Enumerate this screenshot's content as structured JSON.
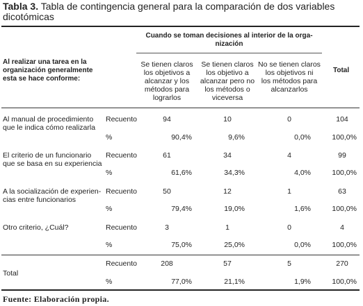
{
  "caption": {
    "label": "Tabla 3.",
    "text": "Tabla de contingencia general para la comparación de dos variables dicotómicas"
  },
  "header": {
    "row_var_line1": "Al realizar una tarea en la",
    "row_var_line2": "organización generalmente",
    "row_var_line3": "esta se hace conforme:",
    "group_line1": "Cuando se toman decisiones al interior de la orga-",
    "group_line2": "nización",
    "col1": [
      "Se tienen claros",
      "los objetivos a",
      "alcanzar y los",
      "métodos para",
      "lograrlos"
    ],
    "col2": [
      "Se tienen claros",
      "los objetivo a",
      "alcanzar pero no",
      "los métodos o",
      "viceversa"
    ],
    "col3": [
      "No se tienen claros",
      "los objetivos ni",
      "los métodos para",
      "alcanzarlos"
    ],
    "total": "Total"
  },
  "rows": [
    {
      "label1": "Al manual de procedimiento",
      "label2": "que le indica cómo realizarla",
      "count_label": "Recuento",
      "pct_label": "%",
      "counts": [
        "94",
        "10",
        "0",
        "104"
      ],
      "pcts": [
        "90,4%",
        "9,6%",
        "0,0%",
        "100,0%"
      ]
    },
    {
      "label1": "El criterio de un funcionario",
      "label2": "que se basa en su experiencia",
      "count_label": "Recuento",
      "pct_label": "%",
      "counts": [
        "61",
        "34",
        "4",
        "99"
      ],
      "pcts": [
        "61,6%",
        "34,3%",
        "4,0%",
        "100,0%"
      ]
    },
    {
      "label1": "A la socialización de experien-",
      "label2": "cias entre funcionarios",
      "count_label": "Recuento",
      "pct_label": "%",
      "counts": [
        "50",
        "12",
        "1",
        "63"
      ],
      "pcts": [
        "79,4%",
        "19,0%",
        "1,6%",
        "100,0%"
      ]
    },
    {
      "label1": "Otro criterio, ¿Cuál?",
      "label2": "",
      "count_label": "Recuento",
      "pct_label": "%",
      "counts": [
        "3",
        "1",
        "0",
        "4"
      ],
      "pcts": [
        "75,0%",
        "25,0%",
        "0,0%",
        "100,0%"
      ]
    }
  ],
  "total_row": {
    "label": "Total",
    "count_label": "Recuento",
    "pct_label": "%",
    "counts": [
      "208",
      "57",
      "5",
      "270"
    ],
    "pcts": [
      "77,0%",
      "21,1%",
      "1,9%",
      "100,0%"
    ]
  },
  "footer": "Fuente: Elaboración propia."
}
